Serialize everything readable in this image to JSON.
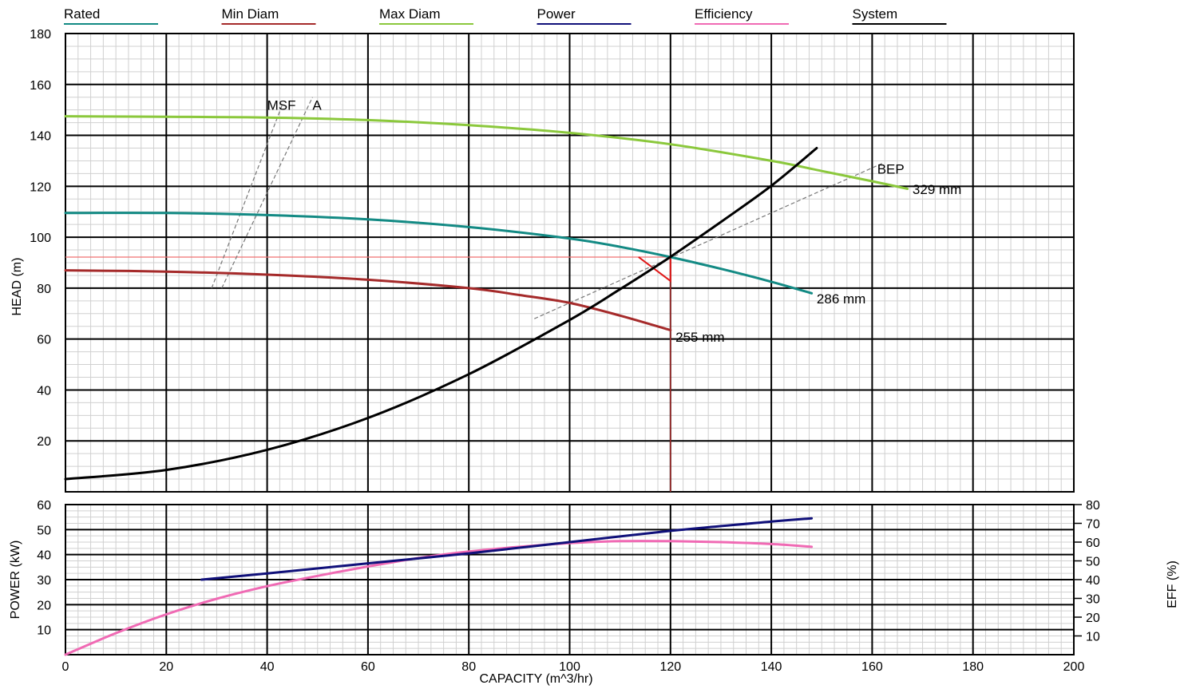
{
  "legend": [
    {
      "label": "Rated",
      "color": "#138a84"
    },
    {
      "label": "Min Diam",
      "color": "#a52a2a"
    },
    {
      "label": "Max Diam",
      "color": "#8bc83c"
    },
    {
      "label": "Power",
      "color": "#10107a"
    },
    {
      "label": "Efficiency",
      "color": "#f06ab4"
    },
    {
      "label": "System",
      "color": "#000000"
    }
  ],
  "chart_data": [
    {
      "type": "line",
      "panel": "head",
      "xlabel": "CAPACITY (m^3/hr)",
      "ylabel": "HEAD (m)",
      "xlim": [
        0,
        200
      ],
      "ylim": [
        0,
        180
      ],
      "x_ticks": [
        0,
        20,
        40,
        60,
        80,
        100,
        120,
        140,
        160,
        180,
        200
      ],
      "y_ticks": [
        20,
        40,
        60,
        80,
        100,
        120,
        140,
        160,
        180
      ],
      "grid": true,
      "legend_position": "top",
      "series": [
        {
          "name": "Rated",
          "color": "#138a84",
          "annotation": "286 mm",
          "x": [
            0,
            20,
            40,
            60,
            80,
            100,
            110,
            120,
            130,
            140,
            148
          ],
          "y": [
            109.5,
            109.5,
            108.7,
            107,
            104,
            99.5,
            96.2,
            92.2,
            87.6,
            82.5,
            78
          ]
        },
        {
          "name": "Min Diam",
          "color": "#a52a2a",
          "annotation": "255 mm",
          "x": [
            0,
            20,
            40,
            60,
            80,
            90,
            100,
            110,
            120
          ],
          "y": [
            87,
            86.5,
            85.3,
            83.3,
            80,
            77.3,
            74.2,
            69.2,
            63.5
          ]
        },
        {
          "name": "Max Diam",
          "color": "#8bc83c",
          "annotation": "329 mm",
          "x": [
            0,
            20,
            40,
            60,
            80,
            100,
            120,
            140,
            150,
            160,
            167
          ],
          "y": [
            147.5,
            147.3,
            147,
            146,
            144,
            141,
            136.5,
            130,
            126,
            122,
            119
          ]
        },
        {
          "name": "System",
          "color": "#000000",
          "x": [
            0,
            20,
            40,
            60,
            80,
            100,
            110,
            120,
            130,
            140,
            149
          ],
          "y": [
            5,
            8.6,
            16.5,
            29,
            46.2,
            67.5,
            79.6,
            92.3,
            106,
            120.2,
            135
          ]
        }
      ],
      "annotations": [
        {
          "text": "MSF",
          "x": 40,
          "y": 150
        },
        {
          "text": "A",
          "x": 49,
          "y": 150
        },
        {
          "text": "BEP",
          "x": 161,
          "y": 125
        },
        {
          "text": "329 mm",
          "x": 168,
          "y": 117
        },
        {
          "text": "286 mm",
          "x": 149,
          "y": 74
        },
        {
          "text": "255 mm",
          "x": 121,
          "y": 59
        }
      ],
      "guide_lines": {
        "rated_head_y": 92.2,
        "rated_flow_x": 120,
        "msf_line": [
          [
            29,
            80
          ],
          [
            43,
            152
          ]
        ],
        "a_line": [
          [
            31,
            80
          ],
          [
            49,
            155
          ]
        ],
        "bep_line": [
          [
            93,
            68
          ],
          [
            162,
            129
          ]
        ]
      }
    },
    {
      "type": "line",
      "panel": "power-efficiency",
      "xlabel": "CAPACITY (m^3/hr)",
      "ylabel": "POWER (kW)",
      "y2label": "EFF (%)",
      "xlim": [
        0,
        200
      ],
      "ylim": [
        0,
        60
      ],
      "y2lim": [
        0,
        80
      ],
      "x_ticks": [
        0,
        20,
        40,
        60,
        80,
        100,
        120,
        140,
        160,
        180,
        200
      ],
      "y_ticks": [
        10,
        20,
        30,
        40,
        50,
        60
      ],
      "y2_ticks": [
        10,
        20,
        30,
        40,
        50,
        60,
        70,
        80
      ],
      "grid": true,
      "series": [
        {
          "name": "Power",
          "color": "#10107a",
          "axis": "left",
          "x": [
            27,
            40,
            60,
            80,
            100,
            120,
            140,
            148
          ],
          "y": [
            30,
            32.5,
            36.5,
            40.5,
            45,
            49.5,
            53.2,
            54.5
          ]
        },
        {
          "name": "Efficiency",
          "color": "#f06ab4",
          "axis": "right",
          "x": [
            0,
            10,
            20,
            30,
            40,
            50,
            60,
            70,
            80,
            90,
            100,
            110,
            120,
            130,
            140,
            148
          ],
          "y": [
            0,
            11.5,
            21.5,
            29.8,
            36.5,
            42,
            47,
            51.5,
            55,
            57.5,
            59.5,
            60.5,
            60.5,
            60,
            59,
            57.5
          ]
        }
      ]
    }
  ]
}
